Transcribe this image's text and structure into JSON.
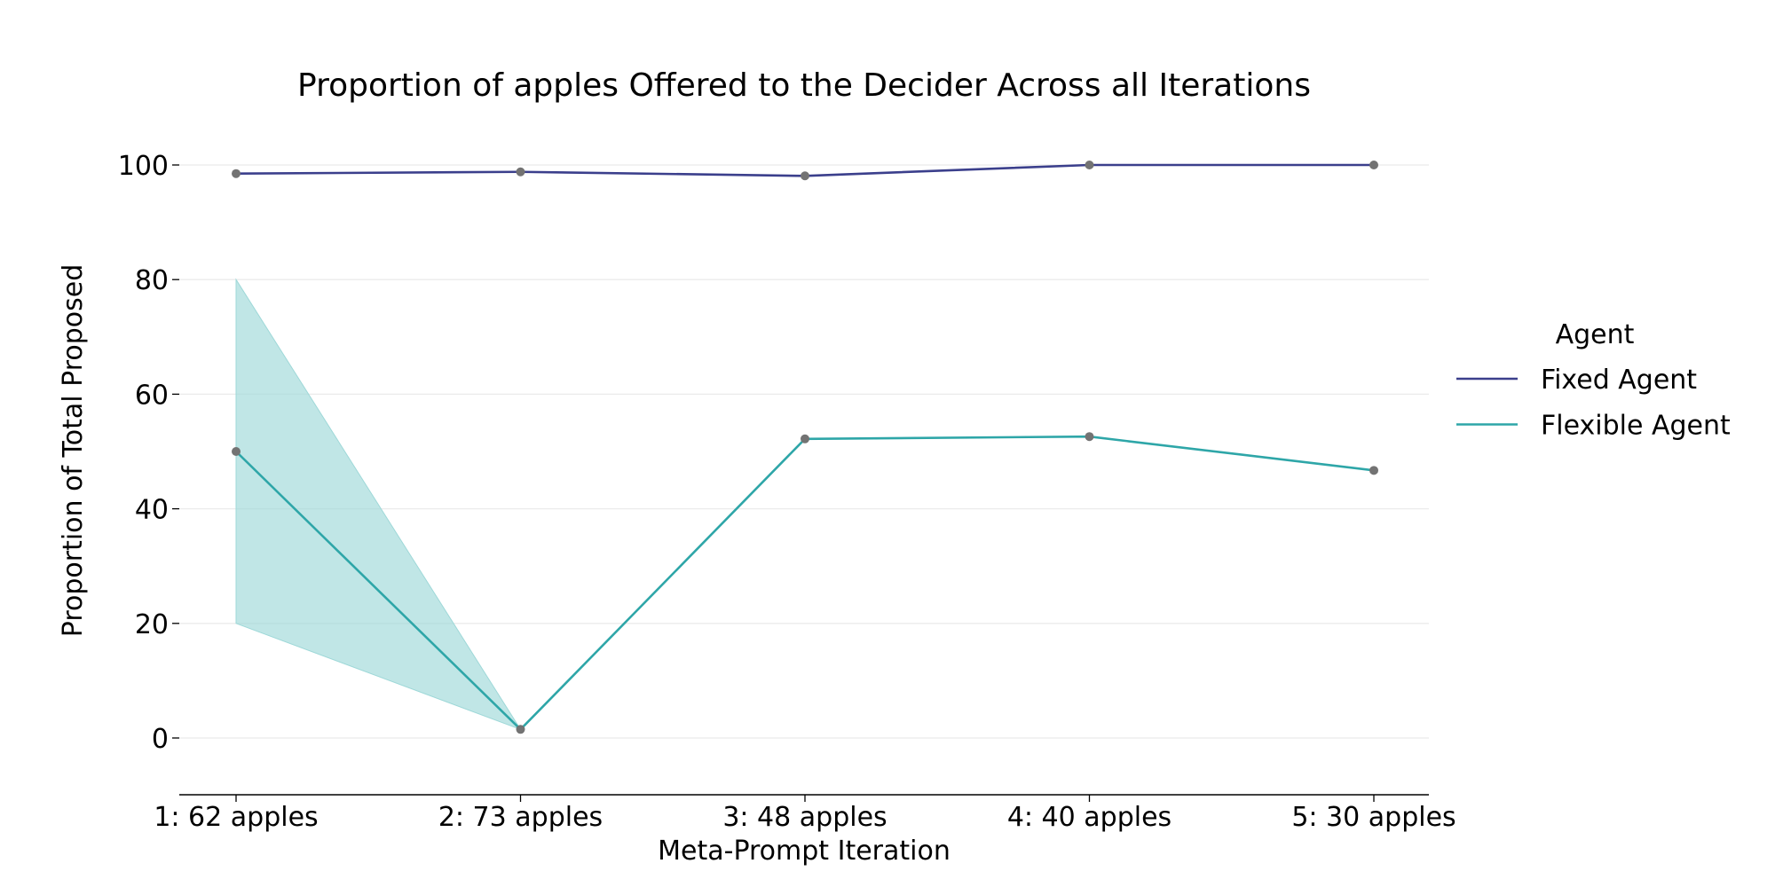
{
  "chart_data": {
    "type": "line",
    "title": "Proportion of apples Offered to the Decider Across all Iterations",
    "xlabel": "Meta-Prompt Iteration",
    "ylabel": "Proportion of Total Proposed",
    "categories": [
      "1: 62 apples",
      "2: 73 apples",
      "3: 48 apples",
      "4: 40 apples",
      "5: 30 apples"
    ],
    "yticks": [
      "0",
      "20",
      "40",
      "60",
      "80",
      "100"
    ],
    "ylim": [
      -10,
      105
    ],
    "grid": true,
    "legend": {
      "title": "Agent",
      "placement": "right"
    },
    "series": [
      {
        "name": "Fixed Agent",
        "color": "#3b3f8c",
        "values": [
          98.5,
          98.8,
          98.1,
          100,
          100
        ]
      },
      {
        "name": "Flexible Agent",
        "color": "#2ea6a8",
        "values": [
          50,
          1.5,
          52.2,
          52.6,
          46.7
        ],
        "ci_lower": [
          20,
          1.5,
          52.2,
          52.6,
          46.7
        ],
        "ci_upper": [
          80,
          1.5,
          52.2,
          52.6,
          46.7
        ],
        "ci_color": "#9ed8d8"
      }
    ],
    "marker_color": "#737373"
  }
}
